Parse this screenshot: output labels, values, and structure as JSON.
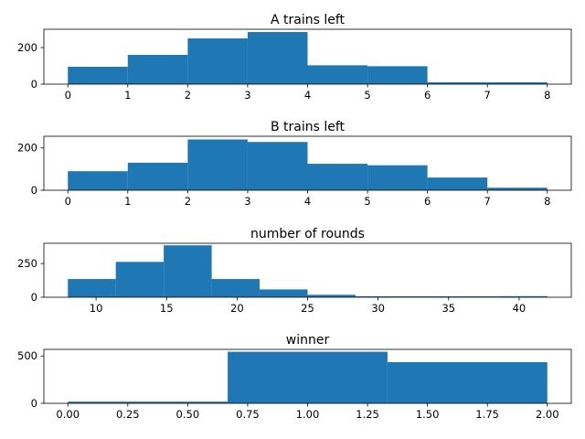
{
  "bar_color": "#1f77b4",
  "chart_data": [
    {
      "type": "bar",
      "title": "A trains left",
      "bin_edges": [
        0,
        1,
        2,
        3,
        4,
        5,
        6,
        8
      ],
      "values": [
        95,
        160,
        250,
        285,
        103,
        98,
        10
      ],
      "xlim": [
        -0.4,
        8.4
      ],
      "ylim": [
        0,
        300
      ],
      "xticks": [
        0,
        1,
        2,
        3,
        4,
        5,
        6,
        7,
        8
      ],
      "xtick_labels": [
        "0",
        "1",
        "2",
        "3",
        "4",
        "5",
        "6",
        "7",
        "8"
      ],
      "yticks": [
        0,
        200
      ],
      "ytick_labels": [
        "0",
        "200"
      ]
    },
    {
      "type": "bar",
      "title": "B trains left",
      "bin_edges": [
        0,
        1,
        2,
        3,
        4,
        5,
        6,
        7,
        8
      ],
      "values": [
        90,
        130,
        240,
        228,
        125,
        118,
        60,
        12
      ],
      "xlim": [
        -0.4,
        8.4
      ],
      "ylim": [
        0,
        255
      ],
      "xticks": [
        0,
        1,
        2,
        3,
        4,
        5,
        6,
        7,
        8
      ],
      "xtick_labels": [
        "0",
        "1",
        "2",
        "3",
        "4",
        "5",
        "6",
        "7",
        "8"
      ],
      "yticks": [
        0,
        200
      ],
      "ytick_labels": [
        "0",
        "200"
      ]
    },
    {
      "type": "bar",
      "title": "number of rounds",
      "bin_edges": [
        8,
        11.4,
        14.8,
        18.2,
        21.6,
        25,
        28.4,
        31.8,
        35.2,
        38.6,
        42
      ],
      "values": [
        135,
        262,
        385,
        135,
        58,
        18,
        3,
        2,
        1,
        8
      ],
      "xlim": [
        6.3,
        43.7
      ],
      "ylim": [
        0,
        400
      ],
      "xticks": [
        10,
        15,
        20,
        25,
        30,
        35,
        40
      ],
      "xtick_labels": [
        "10",
        "15",
        "20",
        "25",
        "30",
        "35",
        "40"
      ],
      "yticks": [
        0,
        250
      ],
      "ytick_labels": [
        "0",
        "250"
      ]
    },
    {
      "type": "bar",
      "title": "winner",
      "bin_edges": [
        0,
        0.6667,
        1.3333,
        2
      ],
      "values": [
        18,
        545,
        435
      ],
      "xlim": [
        -0.1,
        2.1
      ],
      "ylim": [
        0,
        570
      ],
      "xticks": [
        0,
        0.25,
        0.5,
        0.75,
        1,
        1.25,
        1.5,
        1.75,
        2
      ],
      "xtick_labels": [
        "0.00",
        "0.25",
        "0.50",
        "0.75",
        "1.00",
        "1.25",
        "1.50",
        "1.75",
        "2.00"
      ],
      "yticks": [
        0,
        500
      ],
      "ytick_labels": [
        "0",
        "500"
      ]
    }
  ]
}
